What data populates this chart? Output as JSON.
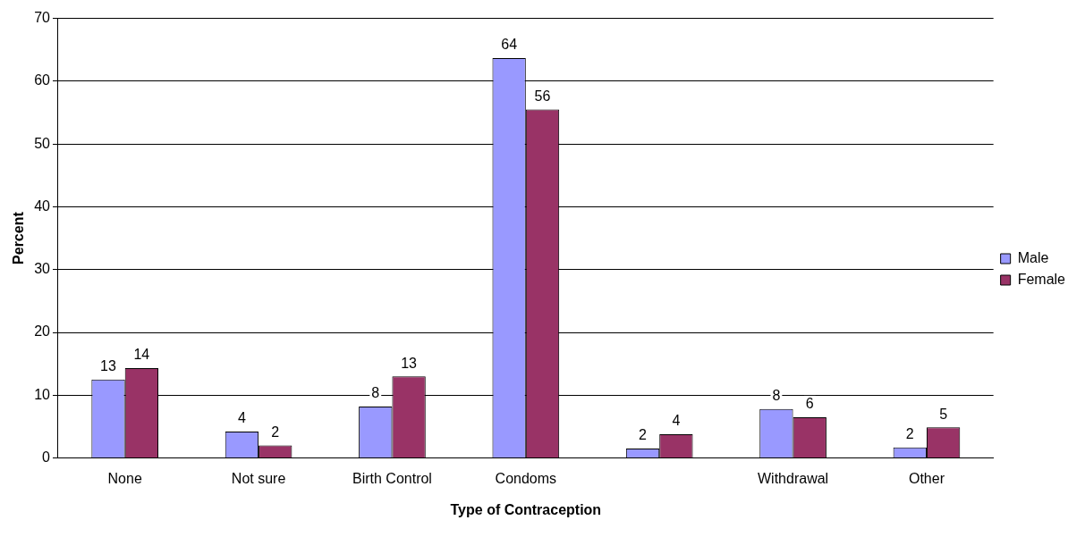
{
  "chart_data": {
    "type": "bar",
    "xlabel": "Type of Contraception",
    "ylabel": "Percent",
    "categories": [
      "None",
      "Not sure",
      "Birth Control",
      "Condoms",
      null,
      "Withdrawal",
      "Other"
    ],
    "series": [
      {
        "name": "Male",
        "color": "#9999ff",
        "values": [
          12.5,
          4.2,
          8.2,
          63.7,
          1.5,
          7.8,
          1.7
        ],
        "value_labels": [
          "13",
          "4",
          "8",
          "64",
          "2",
          "8",
          "2"
        ]
      },
      {
        "name": "Female",
        "color": "#993366",
        "values": [
          14.3,
          2.0,
          13.0,
          55.5,
          3.8,
          6.5,
          4.9
        ],
        "value_labels": [
          "14",
          "2",
          "13",
          "56",
          "4",
          "6",
          "5"
        ]
      }
    ],
    "ylim": [
      0,
      70
    ],
    "yticks": [
      0,
      10,
      20,
      30,
      40,
      50,
      60,
      70
    ],
    "grid": "y",
    "legend": "right"
  }
}
